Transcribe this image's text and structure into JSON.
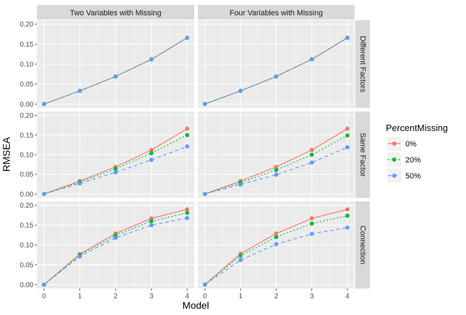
{
  "chart_data": {
    "type": "line",
    "xlabel": "Model",
    "ylabel": "RMSEA",
    "x_ticks": [
      0,
      1,
      2,
      3,
      4
    ],
    "xlim": [
      0,
      4
    ],
    "ylim": [
      0,
      0.2
    ],
    "y_ticks": [
      "0.00",
      "0.05",
      "0.10",
      "0.15",
      "0.20"
    ],
    "legend": {
      "title": "PercentMissing",
      "placement": "right",
      "entries": [
        "0%",
        "20%",
        "50%"
      ]
    },
    "series_colors": [
      "#F8766D",
      "#00BA38",
      "#619CFF"
    ],
    "series_dash": [
      "solid",
      "dotted",
      "dashed"
    ],
    "col_labels": [
      "Two Variables with Missing",
      "Four Variables with Missing"
    ],
    "row_labels": [
      "Different Factors",
      "Same Factor",
      "Connection"
    ],
    "panels": [
      {
        "row": 0,
        "col": 0,
        "series": [
          {
            "name": "0%",
            "values": [
              0,
              0.033,
              0.069,
              0.112,
              0.166
            ]
          },
          {
            "name": "20%",
            "values": [
              0,
              0.033,
              0.069,
              0.112,
              0.166
            ]
          },
          {
            "name": "50%",
            "values": [
              0,
              0.033,
              0.069,
              0.112,
              0.166
            ]
          }
        ]
      },
      {
        "row": 0,
        "col": 1,
        "series": [
          {
            "name": "0%",
            "values": [
              0,
              0.033,
              0.069,
              0.112,
              0.166
            ]
          },
          {
            "name": "20%",
            "values": [
              0,
              0.033,
              0.069,
              0.112,
              0.166
            ]
          },
          {
            "name": "50%",
            "values": [
              0,
              0.033,
              0.069,
              0.112,
              0.166
            ]
          }
        ]
      },
      {
        "row": 1,
        "col": 0,
        "series": [
          {
            "name": "0%",
            "values": [
              0,
              0.033,
              0.069,
              0.112,
              0.166
            ]
          },
          {
            "name": "20%",
            "values": [
              0,
              0.03,
              0.064,
              0.104,
              0.15
            ]
          },
          {
            "name": "50%",
            "values": [
              0,
              0.027,
              0.055,
              0.087,
              0.121
            ]
          }
        ]
      },
      {
        "row": 1,
        "col": 1,
        "series": [
          {
            "name": "0%",
            "values": [
              0,
              0.033,
              0.069,
              0.112,
              0.166
            ]
          },
          {
            "name": "20%",
            "values": [
              0,
              0.029,
              0.061,
              0.1,
              0.149
            ]
          },
          {
            "name": "50%",
            "values": [
              0,
              0.024,
              0.049,
              0.08,
              0.119
            ]
          }
        ]
      },
      {
        "row": 2,
        "col": 0,
        "series": [
          {
            "name": "0%",
            "values": [
              0,
              0.077,
              0.129,
              0.167,
              0.19
            ]
          },
          {
            "name": "20%",
            "values": [
              0,
              0.075,
              0.124,
              0.16,
              0.181
            ]
          },
          {
            "name": "50%",
            "values": [
              0,
              0.071,
              0.118,
              0.15,
              0.168
            ]
          }
        ]
      },
      {
        "row": 2,
        "col": 1,
        "series": [
          {
            "name": "0%",
            "values": [
              0,
              0.078,
              0.129,
              0.167,
              0.19
            ]
          },
          {
            "name": "20%",
            "values": [
              0,
              0.073,
              0.12,
              0.154,
              0.174
            ]
          },
          {
            "name": "50%",
            "values": [
              0,
              0.062,
              0.102,
              0.128,
              0.144
            ]
          }
        ]
      }
    ]
  }
}
